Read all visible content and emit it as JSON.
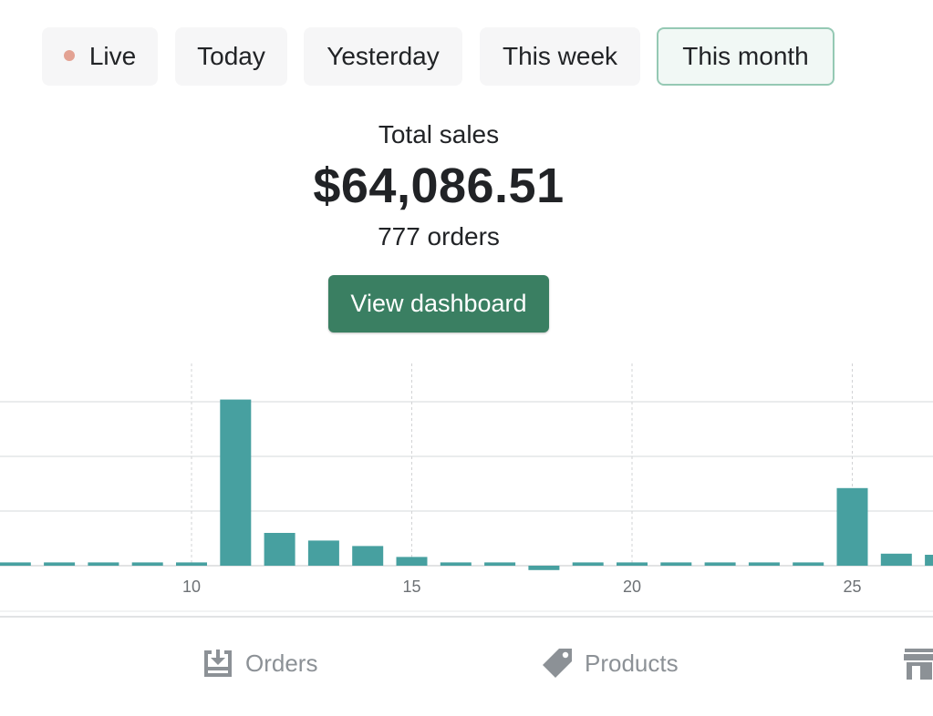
{
  "tabs": [
    {
      "label": "Live",
      "active": false,
      "indicator": true
    },
    {
      "label": "Today",
      "active": false
    },
    {
      "label": "Yesterday",
      "active": false
    },
    {
      "label": "This week",
      "active": false
    },
    {
      "label": "This month",
      "active": true
    }
  ],
  "summary": {
    "total_label": "Total sales",
    "total_value": "$64,086.51",
    "orders_count": "777 orders"
  },
  "dashboard_button": "View dashboard",
  "chart_data": {
    "type": "bar",
    "x": [
      6,
      7,
      8,
      9,
      10,
      11,
      12,
      13,
      14,
      15,
      16,
      17,
      18,
      19,
      20,
      21,
      22,
      23,
      24,
      25,
      26,
      27
    ],
    "values": [
      0.3,
      0.3,
      0.3,
      0.3,
      0.3,
      15.2,
      3.0,
      2.3,
      1.8,
      0.8,
      0.3,
      0.3,
      -0.4,
      0.3,
      0.3,
      0.3,
      0.3,
      0.3,
      0.3,
      7.1,
      1.1,
      1.0
    ],
    "x_tick_labels": [
      "10",
      "15",
      "20",
      "25"
    ],
    "x_ticks": [
      10,
      15,
      20,
      25
    ],
    "ylim": [
      0,
      16
    ],
    "y_gridlines": [
      5,
      10,
      15
    ],
    "grid": true,
    "bar_color": "#47a0a0",
    "title": "",
    "xlabel": "",
    "ylabel": ""
  },
  "nav": [
    {
      "label": "Orders",
      "icon": "orders-inbox-icon"
    },
    {
      "label": "Products",
      "icon": "tag-icon"
    },
    {
      "label": "",
      "icon": "store-icon"
    }
  ],
  "colors": {
    "accent": "#3a7f62",
    "active_tab_border": "#95c9b4",
    "live_dot": "#e3a293",
    "nav_text": "#8c9196"
  }
}
